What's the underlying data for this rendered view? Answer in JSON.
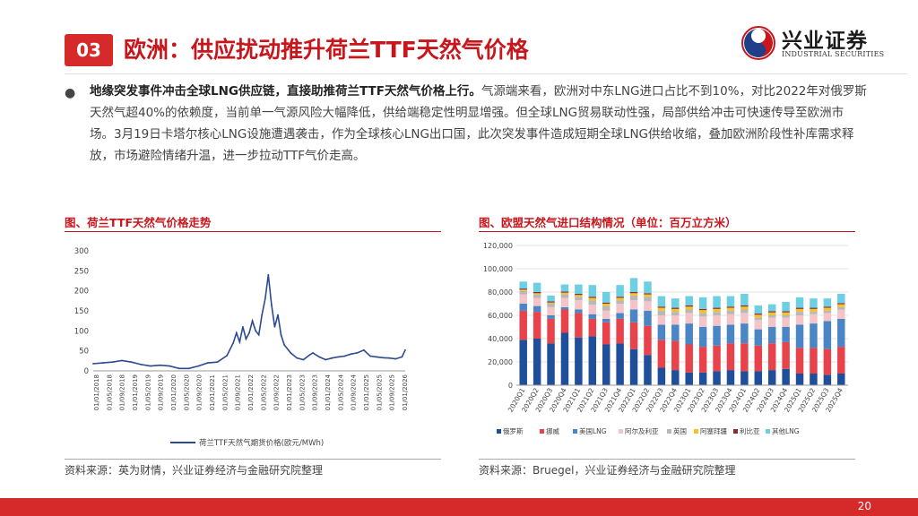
{
  "header": {
    "number": "03",
    "title": "欧洲：供应扰动推升荷兰TTF天然气价格",
    "logo_name": "兴业证券",
    "logo_en": "INDUSTRIAL SECURITIES",
    "brand_color": "#c8161d"
  },
  "body": {
    "bullet": "●",
    "lead": "地缘突发事件冲击全球LNG供应链，直接助推荷兰TTF天然气价格上行。",
    "text": "气源端来看，欧洲对中东LNG进口占比不到10%，对比2022年对俄罗斯天然气超40%的依赖度，当前单一气源风险大幅降低，供给端稳定性明显增强。但全球LNG贸易联动性强，局部供给冲击可快速传导至欧洲市场。3月19日卡塔尔核心LNG设施遭遇袭击，作为全球核心LNG出口国，此次突发事件造成短期全球LNG供给收缩，叠加欧洲阶段性补库需求释放，市场避险情绪升温，进一步拉动TTF气价走高。"
  },
  "left_chart": {
    "panel_title": "图、荷兰TTF天然气价格走势",
    "source": "资料来源：英为财情，兴业证券经济与金融研究院整理"
  },
  "right_chart": {
    "panel_title": "图、欧盟天然气进口结构情况（单位：百万立方米）",
    "source": "资料来源：Bruegel，兴业证券经济与金融研究院整理"
  },
  "footer": {
    "page": "20"
  },
  "chart_data": [
    {
      "type": "line",
      "title": "",
      "xlabel": "",
      "ylabel": "",
      "ylim": [
        0,
        300
      ],
      "yticks": [
        0,
        50,
        100,
        150,
        200,
        250,
        300
      ],
      "xticks": [
        "01/01/2018",
        "01/05/2018",
        "01/09/2018",
        "01/01/2019",
        "01/05/2019",
        "01/09/2019",
        "01/01/2020",
        "01/05/2020",
        "01/09/2020",
        "01/01/2021",
        "01/05/2021",
        "01/09/2021",
        "01/01/2022",
        "01/05/2022",
        "01/09/2022",
        "01/01/2023",
        "01/05/2023",
        "01/09/2023",
        "01/01/2024",
        "01/05/2024",
        "01/09/2024",
        "01/01/2025",
        "01/05/2025",
        "01/09/2025",
        "01/01/2026"
      ],
      "legend": "bottom",
      "grid": false,
      "series": [
        {
          "name": "荷兰TTF天然气期货价格(欧元/MWh)",
          "color": "#2e4a8f",
          "x": [
            "2018-01",
            "2018-04",
            "2018-07",
            "2018-10",
            "2019-01",
            "2019-04",
            "2019-07",
            "2019-10",
            "2020-01",
            "2020-04",
            "2020-07",
            "2020-10",
            "2021-01",
            "2021-04",
            "2021-07",
            "2021-09",
            "2021-10",
            "2021-11",
            "2021-12",
            "2022-01",
            "2022-02",
            "2022-03",
            "2022-04",
            "2022-05",
            "2022-06",
            "2022-07",
            "2022-08",
            "2022-09",
            "2022-10",
            "2022-11",
            "2022-12",
            "2023-01",
            "2023-03",
            "2023-05",
            "2023-07",
            "2023-09",
            "2023-10",
            "2023-12",
            "2024-02",
            "2024-04",
            "2024-06",
            "2024-08",
            "2024-10",
            "2024-12",
            "2025-02",
            "2025-04",
            "2025-06",
            "2025-08",
            "2025-10",
            "2025-12",
            "2026-02",
            "2026-03"
          ],
          "values": [
            18,
            20,
            22,
            26,
            22,
            16,
            12,
            14,
            12,
            6,
            6,
            12,
            20,
            22,
            38,
            70,
            95,
            72,
            110,
            80,
            95,
            125,
            100,
            90,
            140,
            180,
            240,
            165,
            110,
            140,
            90,
            65,
            45,
            32,
            28,
            40,
            45,
            35,
            28,
            32,
            35,
            37,
            42,
            45,
            52,
            37,
            35,
            33,
            32,
            30,
            35,
            52
          ]
        }
      ]
    },
    {
      "type": "bar",
      "stacked": true,
      "title": "",
      "xlabel": "",
      "ylabel": "",
      "ylim": [
        0,
        120000
      ],
      "yticks": [
        0,
        20000,
        40000,
        60000,
        80000,
        100000,
        120000
      ],
      "legend": "bottom",
      "grid": true,
      "categories": [
        "2020Q1",
        "2020Q2",
        "2020Q3",
        "2020Q4",
        "2021Q1",
        "2021Q2",
        "2021Q3",
        "2021Q4",
        "2022Q1",
        "2022Q2",
        "2022Q3",
        "2022Q4",
        "2023Q1",
        "2023Q2",
        "2023Q3",
        "2023Q4",
        "2024Q1",
        "2024Q2",
        "2024Q3",
        "2024Q4",
        "2025Q1",
        "2025Q2",
        "2025Q3",
        "2025Q4"
      ],
      "category_labels": [
        "2020Q1",
        "2020Q2",
        "2020Q3",
        "2020Q4",
        "2021Q1",
        "2021Q2",
        "2021Q3",
        "2021Q4",
        "2022Q1",
        "2022Q2",
        "2022Q3",
        "2022Q4",
        "2023Q1",
        "2023Q2",
        "2023Q3",
        "2023Q4",
        "2024Q1",
        "2024Q2",
        "2024Q3",
        "2024Q4",
        "2025Q1",
        "2025Q2",
        "2025Q3",
        "2025Q4"
      ],
      "series": [
        {
          "name": "俄罗斯",
          "color": "#1f4e9a",
          "values": [
            39000,
            40000,
            36000,
            45000,
            41000,
            42000,
            35000,
            36000,
            31000,
            26000,
            15000,
            13000,
            11000,
            11000,
            12000,
            13000,
            12000,
            12000,
            13000,
            14000,
            10000,
            10000,
            9000,
            10000
          ]
        },
        {
          "name": "挪威",
          "color": "#e8434a",
          "values": [
            25000,
            23000,
            21000,
            20000,
            21000,
            15000,
            19000,
            21000,
            23000,
            25000,
            24000,
            25000,
            24000,
            22000,
            22000,
            23000,
            24000,
            22000,
            23000,
            23000,
            22000,
            22000,
            22000,
            23000
          ]
        },
        {
          "name": "美国LNG",
          "color": "#4a86c5",
          "values": [
            6000,
            5000,
            3000,
            2000,
            3000,
            4000,
            3000,
            5000,
            11000,
            13000,
            13000,
            14000,
            18000,
            17000,
            17000,
            16000,
            17000,
            14000,
            14000,
            13000,
            20000,
            21000,
            24000,
            24000
          ]
        },
        {
          "name": "阿尔及利亚",
          "color": "#f5c4c8",
          "values": [
            8000,
            7000,
            7000,
            8000,
            8000,
            8000,
            7000,
            8000,
            8000,
            8000,
            8000,
            8000,
            9000,
            9000,
            9000,
            9000,
            9000,
            8000,
            8000,
            8000,
            8000,
            8000,
            7000,
            8000
          ]
        },
        {
          "name": "英国",
          "color": "#b8b8b8",
          "values": [
            3000,
            3000,
            3000,
            3000,
            3000,
            4000,
            4000,
            3000,
            4000,
            4000,
            4000,
            3000,
            3000,
            3000,
            3000,
            3000,
            3000,
            2000,
            2000,
            2000,
            3000,
            2000,
            2000,
            2000
          ]
        },
        {
          "name": "阿塞拜疆",
          "color": "#f2c230",
          "values": [
            1000,
            1000,
            1000,
            1500,
            1500,
            2000,
            2000,
            2000,
            2000,
            2000,
            2500,
            2500,
            2500,
            2500,
            2500,
            2500,
            2500,
            2500,
            2500,
            2500,
            2500,
            2500,
            2500,
            2500
          ]
        },
        {
          "name": "利比亚",
          "color": "#8b2d2d",
          "values": [
            1000,
            1000,
            1000,
            1000,
            1000,
            1000,
            1000,
            1000,
            1000,
            1000,
            1000,
            1000,
            1000,
            1000,
            1000,
            1000,
            1000,
            1000,
            1000,
            1000,
            1000,
            1000,
            1000,
            1000
          ]
        },
        {
          "name": "其他LNG",
          "color": "#6ccfe3",
          "values": [
            6000,
            8000,
            5000,
            6000,
            8000,
            10000,
            9000,
            10000,
            12000,
            10000,
            9000,
            8000,
            8000,
            10000,
            10000,
            9000,
            10000,
            7000,
            6000,
            8000,
            9000,
            8000,
            7000,
            8000
          ]
        }
      ]
    }
  ]
}
